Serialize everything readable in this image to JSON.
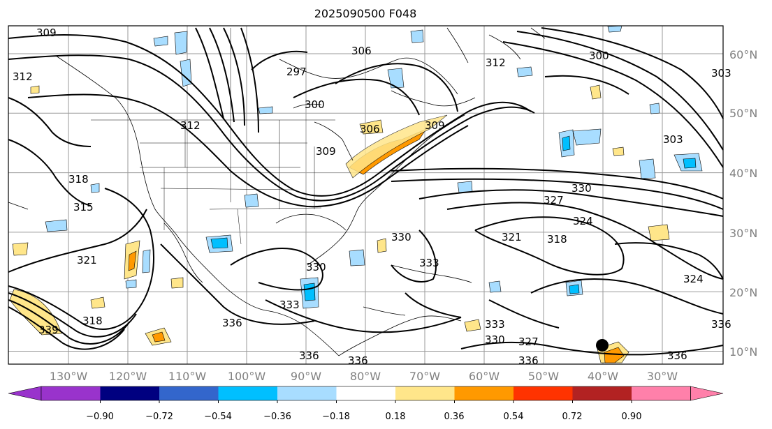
{
  "title": "2025090500 F048",
  "lat_labels": [
    "60°N",
    "50°N",
    "40°N",
    "30°N",
    "20°N",
    "10°N"
  ],
  "lon_labels": [
    "130°W",
    "120°W",
    "110°W",
    "100°W",
    "90°W",
    "80°W",
    "70°W",
    "60°W",
    "50°W",
    "40°W",
    "30°W"
  ],
  "contour_labels": [
    "309",
    "306",
    "297",
    "300",
    "312",
    "303",
    "300",
    "303",
    "306",
    "309",
    "309",
    "312",
    "318",
    "315",
    "321",
    "318",
    "339",
    "330",
    "330",
    "327",
    "324",
    "321",
    "318",
    "324",
    "333",
    "330",
    "336",
    "336",
    "336",
    "336",
    "330",
    "333",
    "336",
    "327",
    "333",
    "336",
    "312"
  ],
  "colorbar": {
    "tick_labels": [
      "−0.90",
      "−0.72",
      "−0.54",
      "−0.36",
      "−0.18",
      "0.18",
      "0.36",
      "0.54",
      "0.72",
      "0.90"
    ],
    "colors": [
      "#9933cc",
      "#000080",
      "#3366cc",
      "#00bfff",
      "#a8ddff",
      "#ffffff",
      "#ffe68a",
      "#ff9900",
      "#ff3300",
      "#b22222",
      "#ff80aa"
    ]
  },
  "marker": {
    "lat": 11,
    "lon": -40,
    "color": "#000000"
  }
}
